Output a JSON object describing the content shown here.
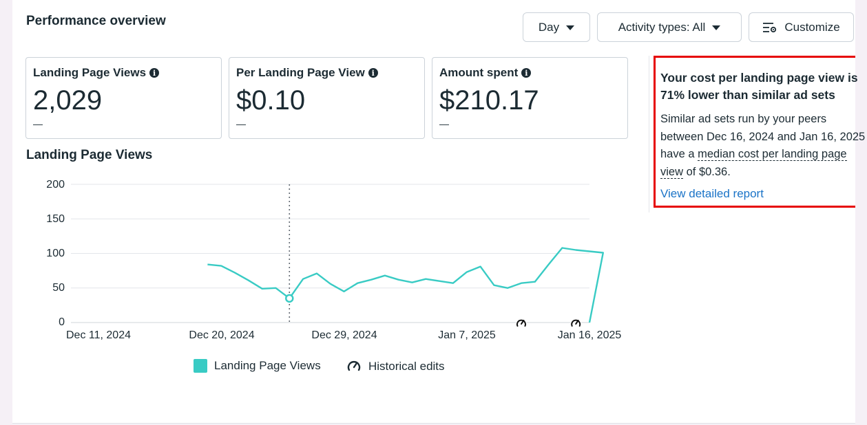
{
  "header": {
    "title": "Performance overview"
  },
  "toolbar": {
    "day_label": "Day",
    "activity_label": "Activity types: All",
    "customize_label": "Customize"
  },
  "metrics": [
    {
      "label": "Landing Page Views",
      "value": "2,029",
      "sub": "—"
    },
    {
      "label": "Per Landing Page View",
      "value": "$0.10",
      "sub": "—"
    },
    {
      "label": "Amount spent",
      "value": "$210.17",
      "sub": "—"
    }
  ],
  "chart_section": {
    "title": "Landing Page Views"
  },
  "chart_data": {
    "type": "line",
    "title": "Landing Page Views",
    "y_ticks": [
      "200",
      "150",
      "100",
      "50",
      "0"
    ],
    "ylim": [
      0,
      200
    ],
    "x_ticks": [
      "Dec 11, 2024",
      "Dec 20, 2024",
      "Dec 29, 2024",
      "Jan 7, 2025",
      "Jan 16, 2025"
    ],
    "x_tick_days": [
      0,
      9,
      18,
      27,
      36
    ],
    "x_dates": [
      "Dec 19, 2024",
      "Dec 20, 2024",
      "Dec 21, 2024",
      "Dec 22, 2024",
      "Dec 23, 2024",
      "Dec 24, 2024",
      "Dec 25, 2024",
      "Dec 26, 2024",
      "Dec 27, 2024",
      "Dec 28, 2024",
      "Dec 29, 2024",
      "Dec 30, 2024",
      "Dec 31, 2024",
      "Jan 1, 2025",
      "Jan 2, 2025",
      "Jan 3, 2025",
      "Jan 4, 2025",
      "Jan 5, 2025",
      "Jan 6, 2025",
      "Jan 7, 2025",
      "Jan 8, 2025",
      "Jan 9, 2025",
      "Jan 10, 2025",
      "Jan 11, 2025",
      "Jan 12, 2025",
      "Jan 13, 2025",
      "Jan 14, 2025",
      "Jan 15, 2025",
      "Jan 16, 2025",
      "Jan 17, 2025"
    ],
    "series": [
      {
        "name": "Landing Page Views",
        "color": "#39cbc4",
        "values": [
          84,
          82,
          72,
          61,
          49,
          50,
          35,
          63,
          71,
          56,
          45,
          57,
          62,
          68,
          62,
          58,
          63,
          60,
          57,
          73,
          81,
          54,
          50,
          57,
          59,
          84,
          108,
          105,
          103,
          101
        ]
      }
    ],
    "highlight_date": "Dec 25, 2024",
    "historical_edit_dates": [
      "Jan 11, 2025",
      "Jan 15, 2025"
    ],
    "grid": true,
    "legend": [
      {
        "label": "Landing Page Views",
        "icon": "color-swatch"
      },
      {
        "label": "Historical edits",
        "icon": "gauge-edit-icon"
      }
    ],
    "legend_position": "bottom"
  },
  "insight": {
    "headline": "Your cost per landing page view is 71% lower than similar ad sets",
    "body_part1": "Similar ad sets run by your peers between Dec 16, 2024 and Jan 16, 2025 have a ",
    "body_link": "median cost per landing page view",
    "body_part2": " of $0.36.",
    "link_label": "View detailed report",
    "highlight_color": "#e60000"
  }
}
